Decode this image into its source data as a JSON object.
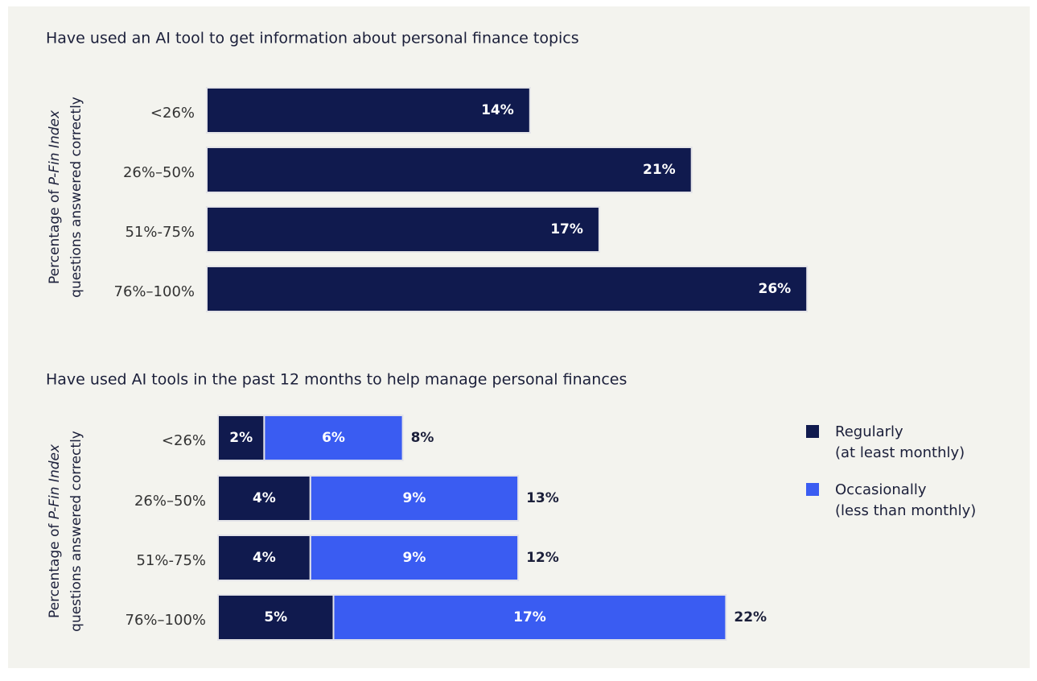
{
  "chart_data": [
    {
      "type": "bar",
      "title": "Have used an AI tool to get information about personal finance topics",
      "ylabel": [
        "Percentage of ",
        "P-Fin Index",
        "questions answered correctly"
      ],
      "categories": [
        "<26%",
        "26%–50%",
        "51%-75%",
        "76%–100%"
      ],
      "values": [
        14,
        21,
        17,
        26
      ],
      "value_labels": [
        "14%",
        "21%",
        "17%",
        "26%"
      ],
      "color": "#101a4e"
    },
    {
      "type": "stacked_bar",
      "title": "Have used AI tools in the past 12 months to help manage personal finances",
      "ylabel": [
        "Percentage of ",
        "P-Fin Index",
        "questions answered correctly"
      ],
      "categories": [
        "<26%",
        "26%–50%",
        "51%-75%",
        "76%–100%"
      ],
      "series": [
        {
          "name": "Regularly",
          "subname": "(at least monthly)",
          "color": "#101a4e",
          "values": [
            2,
            4,
            4,
            5
          ],
          "value_labels": [
            "2%",
            "4%",
            "4%",
            "5%"
          ]
        },
        {
          "name": "Occasionally",
          "subname": "(less than monthly)",
          "color": "#3a5cf2",
          "values": [
            6,
            9,
            9,
            17
          ],
          "value_labels": [
            "6%",
            "9%",
            "9%",
            "17%"
          ]
        }
      ],
      "totals": [
        8,
        13,
        12,
        22
      ],
      "total_labels": [
        "8%",
        "13%",
        "12%",
        "22%"
      ],
      "legend": "right"
    }
  ]
}
